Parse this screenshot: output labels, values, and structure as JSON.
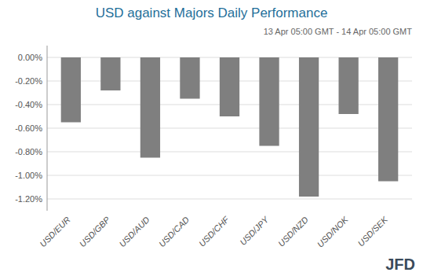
{
  "chart_data": {
    "type": "bar",
    "title": "USD against Majors Daily Performance",
    "subtitle": "13 Apr 05:00 GMT -  14 Apr  05:00 GMT",
    "categories": [
      "USD/EUR",
      "USD/GBP",
      "USD/AUD",
      "USD/CAD",
      "USD/CHF",
      "USD/JPY",
      "USD/NZD",
      "USD/NOK",
      "USD/SEK"
    ],
    "values": [
      -0.55,
      -0.28,
      -0.85,
      -0.35,
      -0.5,
      -0.75,
      -1.18,
      -0.48,
      -1.05
    ],
    "color": "#7f7f7f",
    "ylim": [
      -1.3,
      0.1
    ],
    "yticks": [
      {
        "value": 0.0,
        "label": "0.00%"
      },
      {
        "value": -0.2,
        "label": "-0.20%"
      },
      {
        "value": -0.4,
        "label": "-0.40%"
      },
      {
        "value": -0.6,
        "label": "-0.60%"
      },
      {
        "value": -0.8,
        "label": "-0.80%"
      },
      {
        "value": -1.0,
        "label": "-1.00%"
      },
      {
        "value": -1.2,
        "label": "-1.20%"
      }
    ],
    "grid": true,
    "annotations": [
      "JFD"
    ]
  }
}
